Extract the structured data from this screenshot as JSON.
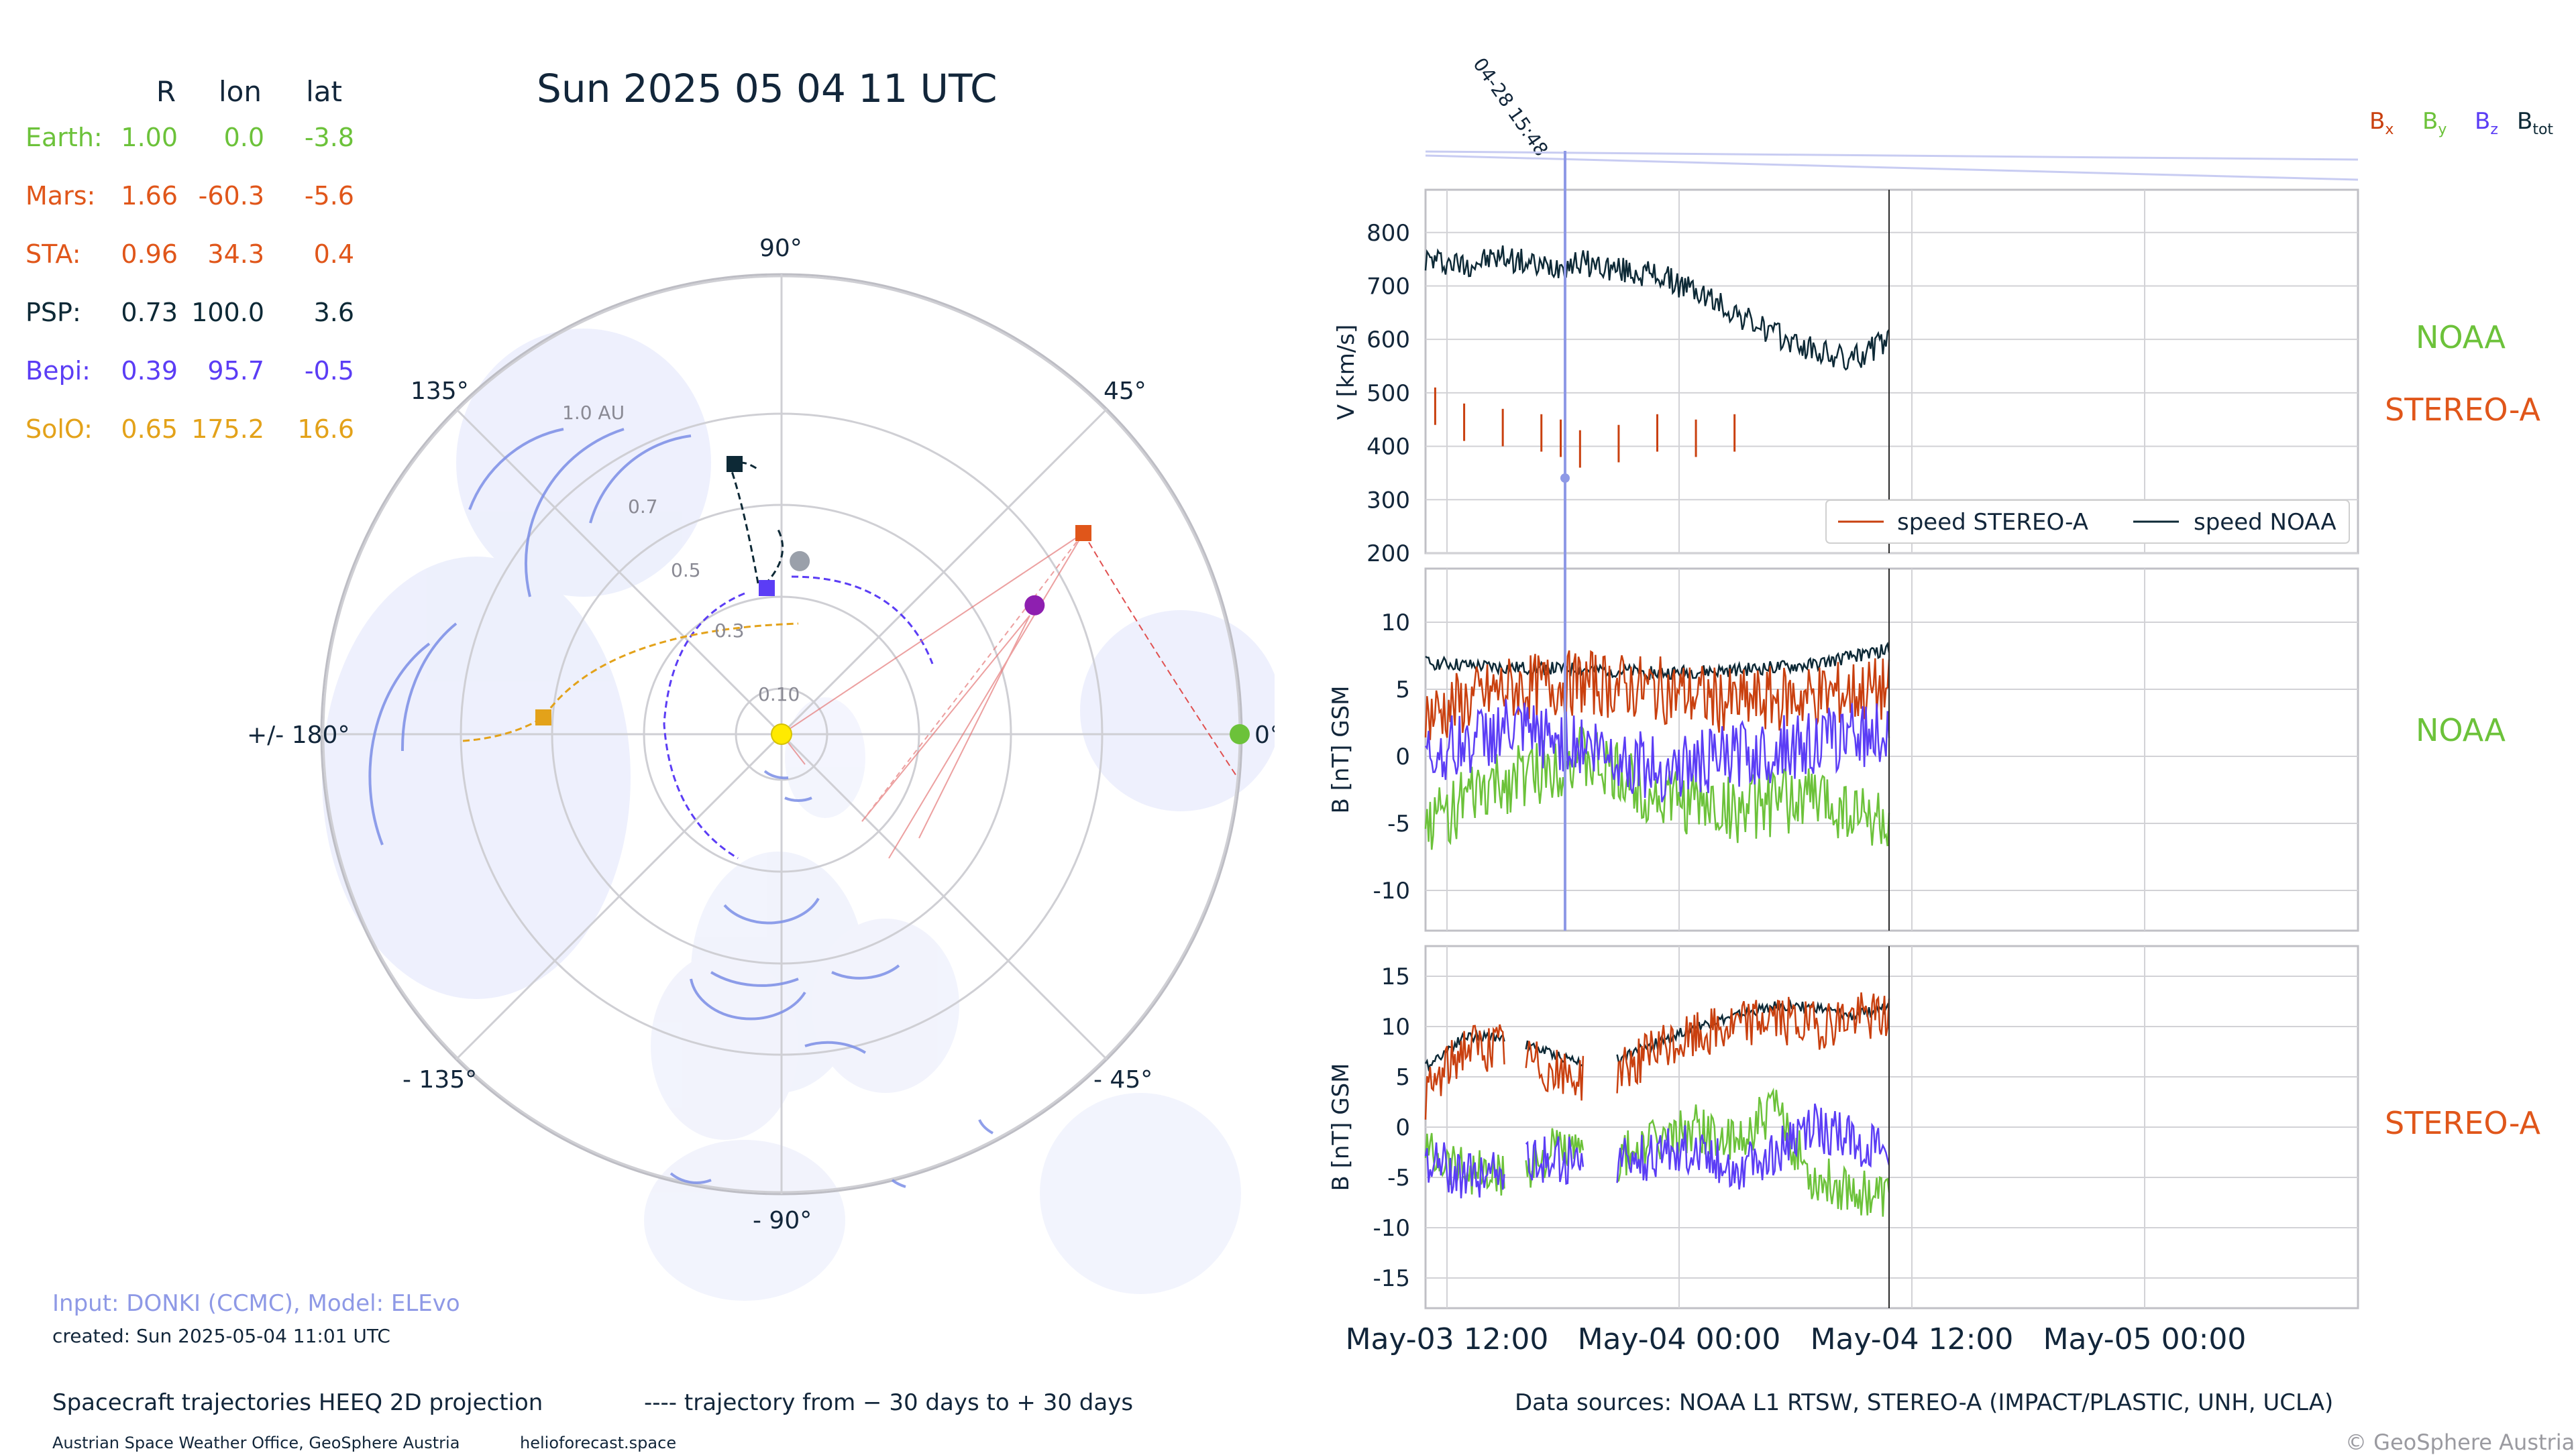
{
  "title": "Sun  2025 05  04  11  UTC",
  "table": {
    "headers": [
      "R",
      "lon",
      "lat"
    ],
    "rows": [
      {
        "name": "Earth:",
        "R": "1.00",
        "lon": "0.0",
        "lat": "-3.8",
        "color": "#6cc23a"
      },
      {
        "name": "Mars:",
        "R": "1.66",
        "lon": "-60.3",
        "lat": "-5.6",
        "color": "#e0561a"
      },
      {
        "name": "STA:",
        "R": "0.96",
        "lon": "34.3",
        "lat": "0.4",
        "color": "#e0561a"
      },
      {
        "name": "PSP:",
        "R": "0.73",
        "lon": "100.0",
        "lat": "3.6",
        "color": "#0d2936"
      },
      {
        "name": "Bepi:",
        "R": "0.39",
        "lon": "95.7",
        "lat": "-0.5",
        "color": "#5b3df5"
      },
      {
        "name": "SolO:",
        "R": "0.65",
        "lon": "175.2",
        "lat": "16.6",
        "color": "#e3a21a"
      }
    ]
  },
  "polar": {
    "angle_labels": {
      "deg90": "90°",
      "deg45": "45°",
      "deg0": "0°",
      "degm45": "- 45°",
      "degm90": "- 90°",
      "degm135": "- 135°",
      "deg180": "+/- 180°",
      "deg135": "135°"
    },
    "ring_labels": {
      "r010": "0.10",
      "r03": "0.3",
      "r05": "0.5",
      "r07": "0.7",
      "r10": "1.0 AU"
    },
    "rmax_au": 1.1,
    "rings_au": [
      0.1,
      0.3,
      0.5,
      0.7,
      1.0
    ],
    "planets": [
      {
        "name": "Sun",
        "r": 0,
        "lon": 0,
        "color": "#ffea00"
      },
      {
        "name": "Earth",
        "r": 1.0,
        "lon": 0.0,
        "color": "#6cc23a"
      },
      {
        "name": "Mars",
        "r": 0.62,
        "lon": 27,
        "color": "#8e1fb0"
      },
      {
        "name": "Venus",
        "r": 0.38,
        "lon": 84,
        "color": "#9aa0aa"
      }
    ]
  },
  "footer": {
    "input": "Input: DONKI (CCMC), Model: ELEvo",
    "created": "created: Sun 2025-05-04 11:01 UTC",
    "projection": "Spacecraft trajectories HEEQ 2D projection",
    "trajectory": "---- trajectory from − 30 days to + 30 days",
    "office": "Austrian Space Weather Office, GeoSphere Austria",
    "site": "helioforecast.space",
    "sources": "Data sources: NOAA L1 RTSW, STEREO-A (IMPACT/PLASTIC, UNH, UCLA)",
    "copyright": "© GeoSphere Austria"
  },
  "right": {
    "marker_label": "04-28 15:48",
    "legend_b": {
      "bx": "B",
      "bx_sub": "x",
      "by": "B",
      "by_sub": "y",
      "bz": "B",
      "bz_sub": "z",
      "btot": "B",
      "btot_sub": "tot"
    },
    "side_labels": {
      "noaa1": "NOAA",
      "stereo1": "STEREO-A",
      "noaa2": "NOAA",
      "stereo2": "STEREO-A"
    },
    "panel1": {
      "ylabel": "V [km/s]",
      "legend_sta": "speed STEREO-A",
      "legend_noaa": "speed NOAA"
    },
    "panel2": {
      "ylabel": "B [nT] GSM"
    },
    "panel3": {
      "ylabel": "B [nT] GSM"
    },
    "xticks": [
      "May-03 12:00",
      "May-04 00:00",
      "May-04 12:00",
      "May-05 00:00"
    ]
  },
  "colors": {
    "bx": "#c9400f",
    "by": "#6cc23a",
    "bz": "#5b3df5",
    "btot": "#0d2936",
    "noaa": "#6cc23a",
    "stereo": "#e0561a",
    "cme": "#7b8ee6"
  },
  "chart_data": [
    {
      "type": "line",
      "title": "",
      "ylabel": "V [km/s]",
      "ylim": [
        200,
        880
      ],
      "x_range_hours": [
        "2025-05-03 11:00",
        "2025-05-05 11:00"
      ],
      "series": [
        {
          "name": "speed NOAA",
          "x_hours": [
            0,
            2,
            4,
            6,
            8,
            10,
            12,
            14,
            16,
            18,
            20,
            22,
            24
          ],
          "values": [
            750,
            740,
            755,
            735,
            745,
            730,
            720,
            690,
            650,
            610,
            580,
            560,
            600
          ]
        },
        {
          "name": "speed STEREO-A",
          "x_hours": [
            0.5,
            2,
            4,
            6,
            7,
            8,
            10,
            12,
            14,
            16
          ],
          "values": [
            470,
            440,
            430,
            420,
            410,
            390,
            400,
            420,
            410,
            420
          ]
        }
      ],
      "yticks": [
        200,
        300,
        400,
        500,
        600,
        700,
        800
      ]
    },
    {
      "type": "line",
      "ylabel": "B [nT] GSM",
      "ylim": [
        -13,
        14
      ],
      "yticks": [
        -10,
        -5,
        0,
        5,
        10
      ],
      "series": [
        {
          "name": "Btot",
          "x_hours": [
            0,
            4,
            8,
            12,
            16,
            20,
            24
          ],
          "values": [
            7,
            6.6,
            6.5,
            6.2,
            6.4,
            6.8,
            8
          ]
        },
        {
          "name": "Bx",
          "x_hours": [
            0,
            4,
            8,
            12,
            16,
            20,
            24
          ],
          "values": [
            3,
            5,
            5.5,
            5,
            4,
            4.5,
            5
          ]
        },
        {
          "name": "By",
          "x_hours": [
            0,
            4,
            8,
            12,
            16,
            20,
            24
          ],
          "values": [
            -5,
            -2,
            0,
            -3,
            -4,
            -3,
            -5
          ]
        },
        {
          "name": "Bz",
          "x_hours": [
            0,
            4,
            8,
            12,
            16,
            20,
            24
          ],
          "values": [
            0,
            2,
            1,
            -1,
            0,
            1,
            2
          ]
        }
      ]
    },
    {
      "type": "line",
      "ylabel": "B [nT] GSM",
      "ylim": [
        -18,
        18
      ],
      "yticks": [
        -15,
        -10,
        -5,
        0,
        5,
        10,
        15
      ],
      "series": [
        {
          "name": "Btot",
          "x_hours": [
            0,
            2,
            4,
            7,
            9,
            14,
            16,
            18,
            20,
            22,
            24
          ],
          "values": [
            6,
            9,
            9,
            7,
            6,
            10,
            11,
            12,
            12,
            11,
            12
          ]
        },
        {
          "name": "Bx",
          "x_hours": [
            0,
            2,
            4,
            7,
            9,
            14,
            16,
            18,
            20,
            22,
            24
          ],
          "values": [
            3,
            8,
            8,
            5,
            5,
            9,
            10,
            11,
            10,
            11,
            11
          ]
        },
        {
          "name": "By",
          "x_hours": [
            0,
            2,
            4,
            7,
            9,
            14,
            16,
            18,
            20,
            22,
            24
          ],
          "values": [
            -2,
            -4,
            -5,
            -2,
            -4,
            0,
            -2,
            2,
            -5,
            -6,
            -7
          ]
        },
        {
          "name": "Bz",
          "x_hours": [
            0,
            2,
            4,
            7,
            9,
            14,
            16,
            18,
            20,
            22,
            24
          ],
          "values": [
            -3,
            -5,
            -4,
            -3,
            -4,
            -2,
            -4,
            -3,
            0,
            -1,
            -3
          ]
        }
      ]
    }
  ]
}
